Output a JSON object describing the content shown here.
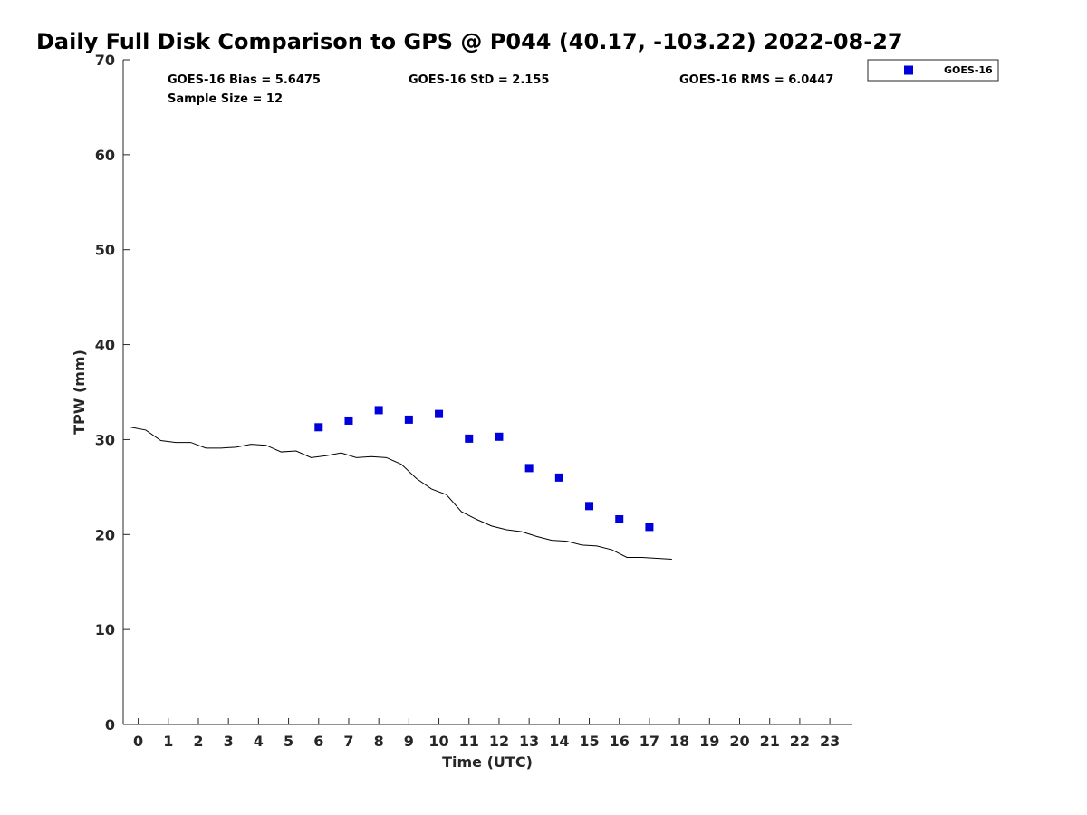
{
  "chart_data": {
    "type": "scatter",
    "title": "Daily Full Disk Comparison to GPS @ P044 (40.17, -103.22) 2022-08-27",
    "xlabel": "Time (UTC)",
    "ylabel": "TPW (mm)",
    "xlim": [
      -0.5,
      23.75
    ],
    "ylim": [
      0,
      70
    ],
    "xticks": [
      "0",
      "1",
      "2",
      "3",
      "4",
      "5",
      "6",
      "7",
      "8",
      "9",
      "10",
      "11",
      "12",
      "13",
      "14",
      "15",
      "16",
      "17",
      "18",
      "19",
      "20",
      "21",
      "22",
      "23"
    ],
    "yticks": [
      "0",
      "10",
      "20",
      "30",
      "40",
      "50",
      "60",
      "70"
    ],
    "grid": false,
    "stats": {
      "bias": "GOES-16 Bias = 5.6475",
      "std": "GOES-16 StD = 2.155",
      "rms": "GOES-16 RMS = 6.0447",
      "sample": "Sample Size = 12"
    },
    "legend": {
      "placement": "outside top-right",
      "entries": [
        "GOES-16"
      ]
    },
    "series": [
      {
        "name": "GOES-16",
        "kind": "scatter",
        "color": "#0000dd",
        "marker": "square",
        "x": [
          6,
          7,
          8,
          9,
          10,
          11,
          12,
          13,
          14,
          15,
          16,
          17
        ],
        "y": [
          31.3,
          32.0,
          33.1,
          32.1,
          32.7,
          30.1,
          30.3,
          27.0,
          26.0,
          23.0,
          21.6,
          20.8
        ]
      },
      {
        "kind": "line",
        "color": "#000000",
        "x": [
          -0.25,
          0.25,
          0.75,
          1.25,
          1.75,
          2.25,
          2.75,
          3.25,
          3.75,
          4.25,
          4.75,
          5.25,
          5.75,
          6.25,
          6.75,
          7.25,
          7.75,
          8.25,
          8.75,
          9.25,
          9.75,
          10.25,
          10.75,
          11.25,
          11.75,
          12.25,
          12.75,
          13.25,
          13.75,
          14.25,
          14.75,
          15.25,
          15.75,
          16.25,
          16.75,
          17.25,
          17.75
        ],
        "y": [
          31.3,
          31.0,
          29.9,
          29.7,
          29.7,
          29.1,
          29.1,
          29.2,
          29.5,
          29.4,
          28.7,
          28.8,
          28.1,
          28.3,
          28.6,
          28.1,
          28.2,
          28.1,
          27.4,
          25.9,
          24.8,
          24.2,
          22.4,
          21.6,
          20.9,
          20.5,
          20.3,
          19.8,
          19.4,
          19.3,
          18.9,
          18.8,
          18.4,
          17.6,
          17.6,
          17.5,
          17.4
        ]
      }
    ]
  }
}
